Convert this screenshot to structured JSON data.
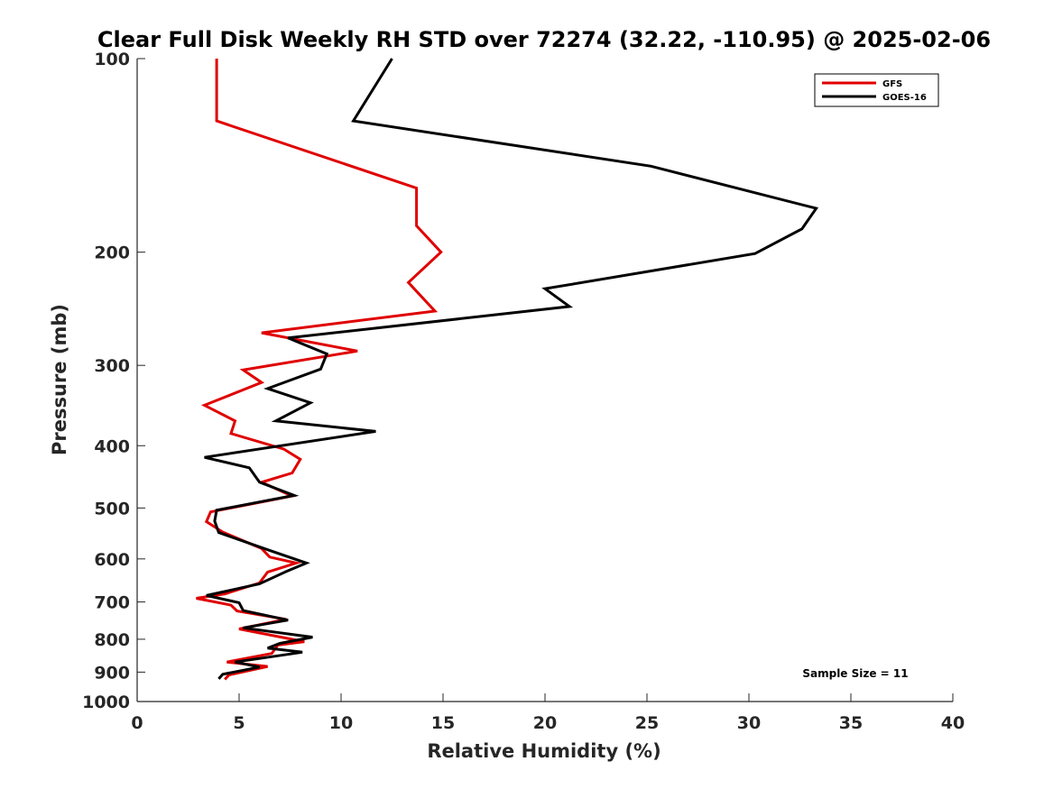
{
  "chart_data": {
    "type": "line",
    "title": "Clear Full Disk Weekly RH STD over 72274 (32.22, -110.95) @ 2025-02-06",
    "xlabel": "Relative Humidity (%)",
    "ylabel": "Pressure (mb)",
    "xlim": [
      0,
      40
    ],
    "ylim": [
      100,
      1000
    ],
    "y_scale": "log",
    "y_reversed": true,
    "x_ticks": [
      "0",
      "5",
      "10",
      "15",
      "20",
      "25",
      "30",
      "35",
      "40"
    ],
    "y_ticks": [
      "100",
      "200",
      "300",
      "400",
      "500",
      "600",
      "700",
      "800",
      "900",
      "1000"
    ],
    "grid": false,
    "legend_position": "top-right",
    "annotation": "Sample Size = 11",
    "series": [
      {
        "name": "GFS",
        "color": "#e00000",
        "points": [
          [
            3.9,
            100
          ],
          [
            3.9,
            125
          ],
          [
            13.7,
            159
          ],
          [
            13.7,
            182
          ],
          [
            14.9,
            200
          ],
          [
            13.3,
            223
          ],
          [
            14.6,
            247
          ],
          [
            6.1,
            267
          ],
          [
            10.8,
            285
          ],
          [
            5.2,
            305
          ],
          [
            6.1,
            319
          ],
          [
            3.3,
            346
          ],
          [
            4.8,
            366
          ],
          [
            4.6,
            383
          ],
          [
            7.2,
            405
          ],
          [
            8.0,
            420
          ],
          [
            7.6,
            441
          ],
          [
            6.1,
            456
          ],
          [
            7.6,
            479
          ],
          [
            3.6,
            507
          ],
          [
            3.4,
            525
          ],
          [
            4.2,
            545
          ],
          [
            6.1,
            578
          ],
          [
            6.5,
            596
          ],
          [
            7.8,
            609
          ],
          [
            6.4,
            629
          ],
          [
            6.0,
            654
          ],
          [
            4.3,
            680
          ],
          [
            2.9,
            691
          ],
          [
            4.6,
            708
          ],
          [
            4.9,
            723
          ],
          [
            7.3,
            745
          ],
          [
            5.0,
            771
          ],
          [
            8.2,
            807
          ],
          [
            6.9,
            817
          ],
          [
            6.6,
            842
          ],
          [
            4.4,
            868
          ],
          [
            6.4,
            882
          ],
          [
            4.5,
            909
          ],
          [
            4.3,
            924
          ]
        ]
      },
      {
        "name": "GOES-16",
        "color": "#000000",
        "points": [
          [
            12.5,
            100
          ],
          [
            10.6,
            125
          ],
          [
            25.2,
            147
          ],
          [
            33.3,
            171
          ],
          [
            32.6,
            184
          ],
          [
            30.3,
            201
          ],
          [
            20.0,
            228
          ],
          [
            21.2,
            243
          ],
          [
            7.4,
            272
          ],
          [
            9.3,
            288
          ],
          [
            9.0,
            304
          ],
          [
            6.4,
            326
          ],
          [
            8.5,
            343
          ],
          [
            6.8,
            366
          ],
          [
            11.7,
            380
          ],
          [
            3.3,
            417
          ],
          [
            5.5,
            433
          ],
          [
            6.0,
            456
          ],
          [
            7.7,
            478
          ],
          [
            3.9,
            504
          ],
          [
            3.8,
            524
          ],
          [
            4.0,
            546
          ],
          [
            6.5,
            582
          ],
          [
            8.3,
            609
          ],
          [
            7.3,
            628
          ],
          [
            6.0,
            656
          ],
          [
            3.4,
            684
          ],
          [
            5.0,
            702
          ],
          [
            5.2,
            722
          ],
          [
            7.4,
            747
          ],
          [
            5.2,
            768
          ],
          [
            8.6,
            794
          ],
          [
            7.0,
            812
          ],
          [
            6.4,
            826
          ],
          [
            8.1,
            838
          ],
          [
            4.8,
            868
          ],
          [
            6.0,
            884
          ],
          [
            4.2,
            907
          ],
          [
            4.0,
            922
          ]
        ]
      }
    ]
  }
}
